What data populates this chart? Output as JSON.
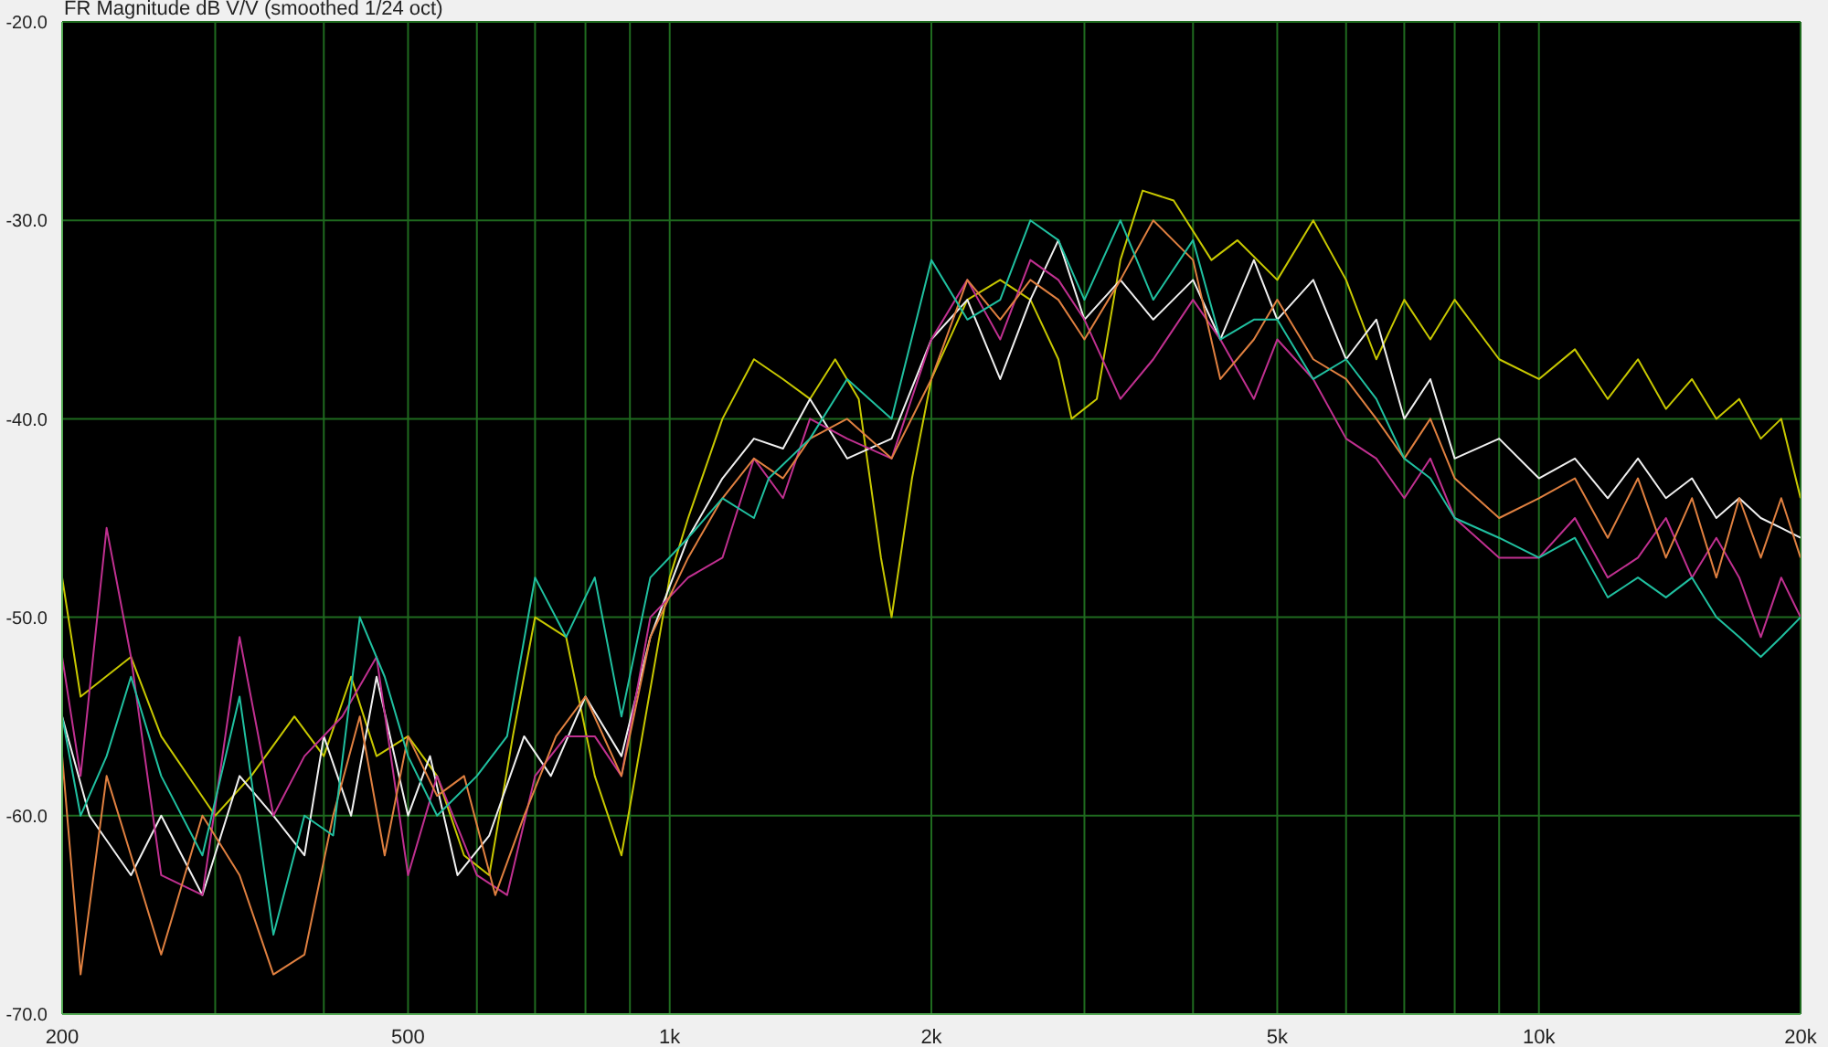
{
  "chart_data": {
    "type": "line",
    "title": "FR Magnitude dB V/V (smoothed 1/24 oct)",
    "log": "x",
    "grid": true,
    "xlim": [
      200,
      20000
    ],
    "xticks": [
      {
        "value": 200,
        "label": "200"
      },
      {
        "value": 300,
        "label": null
      },
      {
        "value": 400,
        "label": null
      },
      {
        "value": 500,
        "label": "500"
      },
      {
        "value": 600,
        "label": null
      },
      {
        "value": 700,
        "label": null
      },
      {
        "value": 800,
        "label": null
      },
      {
        "value": 900,
        "label": null
      },
      {
        "value": 1000,
        "label": "1k"
      },
      {
        "value": 2000,
        "label": "2k"
      },
      {
        "value": 3000,
        "label": null
      },
      {
        "value": 4000,
        "label": null
      },
      {
        "value": 5000,
        "label": "5k"
      },
      {
        "value": 6000,
        "label": null
      },
      {
        "value": 7000,
        "label": null
      },
      {
        "value": 8000,
        "label": null
      },
      {
        "value": 9000,
        "label": null
      },
      {
        "value": 10000,
        "label": "10k"
      },
      {
        "value": 20000,
        "label": "20k"
      }
    ],
    "ylim": [
      -70,
      -20
    ],
    "yticks": [
      {
        "value": -70,
        "label": "-70.0"
      },
      {
        "value": -60,
        "label": "-60.0"
      },
      {
        "value": -50,
        "label": "-50.0"
      },
      {
        "value": -40,
        "label": "-40.0"
      },
      {
        "value": -30,
        "label": "-30.0"
      },
      {
        "value": -20,
        "label": "-20.0"
      }
    ],
    "series": [
      {
        "color": "#c8c800",
        "x": [
          200,
          210,
          240,
          260,
          300,
          330,
          370,
          400,
          430,
          460,
          500,
          540,
          580,
          620,
          660,
          700,
          760,
          820,
          880,
          1000,
          1050,
          1150,
          1250,
          1350,
          1450,
          1550,
          1650,
          1750,
          1800,
          1900,
          2000,
          2200,
          2400,
          2600,
          2800,
          2900,
          3100,
          3300,
          3500,
          3800,
          4200,
          4500,
          5000,
          5500,
          6000,
          6500,
          7000,
          7500,
          8000,
          9000,
          10000,
          11000,
          12000,
          13000,
          14000,
          15000,
          16000,
          17000,
          18000,
          19000,
          20000
        ],
        "values": [
          -48,
          -54,
          -52,
          -56,
          -60,
          -58,
          -55,
          -57,
          -53,
          -57,
          -56,
          -58,
          -62,
          -63,
          -56,
          -50,
          -51,
          -58,
          -62,
          -48,
          -45,
          -40,
          -37,
          -38,
          -39,
          -37,
          -39,
          -47,
          -50,
          -43,
          -38,
          -34,
          -33,
          -34,
          -37,
          -40,
          -39,
          -32,
          -28.5,
          -29,
          -32,
          -31,
          -33,
          -30,
          -33,
          -37,
          -34,
          -36,
          -34,
          -37,
          -38,
          -36.5,
          -39,
          -37,
          -39.5,
          -38,
          -40,
          -39,
          -41,
          -40,
          -44
        ]
      },
      {
        "color": "#f0f0f0",
        "x": [
          200,
          215,
          240,
          260,
          290,
          320,
          350,
          380,
          400,
          430,
          460,
          500,
          530,
          570,
          620,
          680,
          730,
          800,
          880,
          950,
          1050,
          1150,
          1250,
          1350,
          1450,
          1600,
          1800,
          2000,
          2200,
          2400,
          2600,
          2800,
          3000,
          3300,
          3600,
          4000,
          4300,
          4700,
          5000,
          5500,
          6000,
          6500,
          7000,
          7500,
          8000,
          9000,
          10000,
          11000,
          12000,
          13000,
          14000,
          15000,
          16000,
          17000,
          18000,
          19000,
          20000
        ],
        "values": [
          -55,
          -60,
          -63,
          -60,
          -64,
          -58,
          -60,
          -62,
          -56,
          -60,
          -53,
          -60,
          -57,
          -63,
          -61,
          -56,
          -58,
          -54,
          -57,
          -51,
          -46,
          -43,
          -41,
          -41.5,
          -39,
          -42,
          -41,
          -36,
          -34,
          -38,
          -34,
          -31,
          -35,
          -33,
          -35,
          -33,
          -36,
          -32,
          -35,
          -33,
          -37,
          -35,
          -40,
          -38,
          -42,
          -41,
          -43,
          -42,
          -44,
          -42,
          -44,
          -43,
          -45,
          -44,
          -45,
          -45.5,
          -46
        ]
      },
      {
        "color": "#c03090",
        "x": [
          200,
          210,
          225,
          240,
          260,
          290,
          320,
          350,
          380,
          420,
          460,
          500,
          540,
          600,
          650,
          700,
          760,
          820,
          880,
          950,
          1050,
          1150,
          1250,
          1350,
          1450,
          1600,
          1800,
          2000,
          2200,
          2400,
          2600,
          2800,
          3000,
          3300,
          3600,
          4000,
          4300,
          4700,
          5000,
          5500,
          6000,
          6500,
          7000,
          7500,
          8000,
          9000,
          10000,
          11000,
          12000,
          13000,
          14000,
          15000,
          16000,
          17000,
          18000,
          19000,
          20000
        ],
        "values": [
          -52,
          -58,
          -45.5,
          -52,
          -63,
          -64,
          -51,
          -60,
          -57,
          -55,
          -52,
          -63,
          -58,
          -63,
          -64,
          -58,
          -56,
          -56,
          -58,
          -50,
          -48,
          -47,
          -42,
          -44,
          -40,
          -41,
          -42,
          -36,
          -33,
          -36,
          -32,
          -33,
          -35,
          -39,
          -37,
          -34,
          -36,
          -39,
          -36,
          -38,
          -41,
          -42,
          -44,
          -42,
          -45,
          -47,
          -47,
          -45,
          -48,
          -47,
          -45,
          -48,
          -46,
          -48,
          -51,
          -48,
          -50
        ]
      },
      {
        "color": "#e08040",
        "x": [
          200,
          210,
          225,
          240,
          260,
          290,
          320,
          350,
          380,
          410,
          440,
          470,
          500,
          540,
          580,
          630,
          680,
          740,
          800,
          880,
          950,
          1050,
          1150,
          1250,
          1350,
          1450,
          1600,
          1800,
          2000,
          2200,
          2400,
          2600,
          2800,
          3000,
          3300,
          3600,
          4000,
          4300,
          4700,
          5000,
          5500,
          6000,
          6500,
          7000,
          7500,
          8000,
          9000,
          10000,
          11000,
          12000,
          13000,
          14000,
          15000,
          16000,
          17000,
          18000,
          19000,
          20000
        ],
        "values": [
          -57,
          -68,
          -58,
          -62,
          -67,
          -60,
          -63,
          -68,
          -67,
          -60,
          -55,
          -62,
          -56,
          -59,
          -58,
          -64,
          -60,
          -56,
          -54,
          -58,
          -51,
          -47,
          -44,
          -42,
          -43,
          -41,
          -40,
          -42,
          -38,
          -33,
          -35,
          -33,
          -34,
          -36,
          -33,
          -30,
          -32,
          -38,
          -36,
          -34,
          -37,
          -38,
          -40,
          -42,
          -40,
          -43,
          -45,
          -44,
          -43,
          -46,
          -43,
          -47,
          -44,
          -48,
          -44,
          -47,
          -44,
          -47
        ]
      },
      {
        "color": "#20c0a0",
        "x": [
          200,
          210,
          225,
          240,
          260,
          290,
          320,
          350,
          380,
          410,
          440,
          470,
          500,
          540,
          600,
          650,
          700,
          760,
          820,
          880,
          950,
          1050,
          1150,
          1250,
          1300,
          1450,
          1600,
          1800,
          2000,
          2200,
          2400,
          2600,
          2800,
          3000,
          3300,
          3600,
          4000,
          4300,
          4700,
          5000,
          5500,
          6000,
          6500,
          7000,
          7500,
          8000,
          9000,
          10000,
          11000,
          12000,
          13000,
          14000,
          15000,
          16000,
          17000,
          18000,
          19000,
          20000
        ],
        "values": [
          -55,
          -60,
          -57,
          -53,
          -58,
          -62,
          -54,
          -66,
          -60,
          -61,
          -50,
          -53,
          -57,
          -60,
          -58,
          -56,
          -48,
          -51,
          -48,
          -55,
          -48,
          -46,
          -44,
          -45,
          -43,
          -41,
          -38,
          -40,
          -32,
          -35,
          -34,
          -30,
          -31,
          -34,
          -30,
          -34,
          -31,
          -36,
          -35,
          -35,
          -38,
          -37,
          -39,
          -42,
          -43,
          -45,
          -46,
          -47,
          -46,
          -49,
          -48,
          -49,
          -48,
          -50,
          -51,
          -52,
          -51,
          -50
        ]
      }
    ]
  }
}
